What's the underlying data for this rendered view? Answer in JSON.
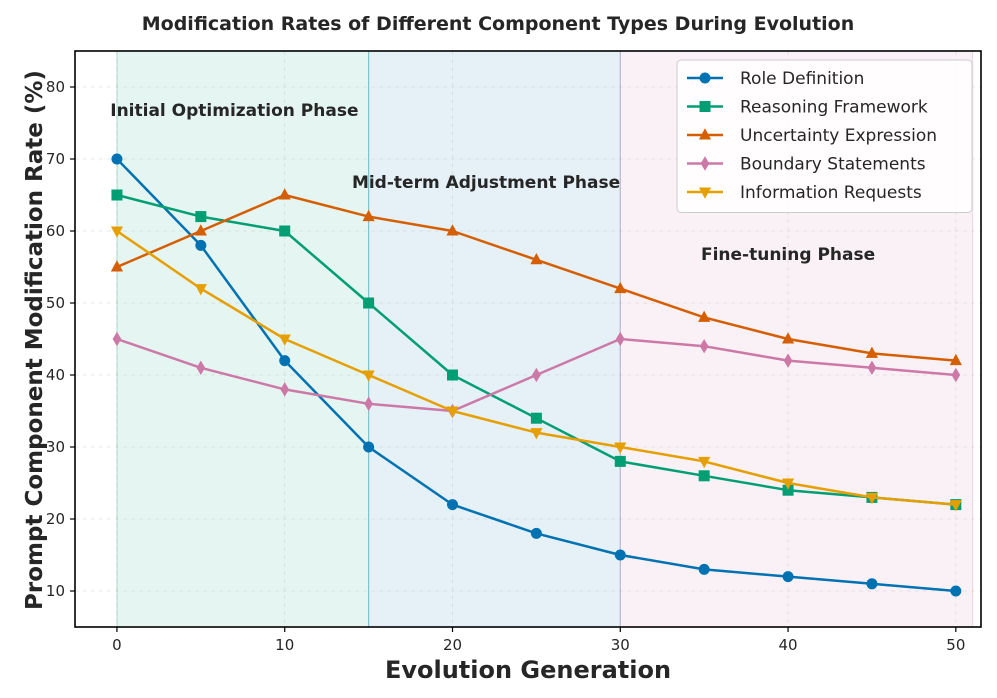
{
  "chart_data": {
    "type": "line",
    "title": "Modification Rates of Different Component Types During Evolution",
    "xlabel": "Evolution Generation",
    "ylabel": "Prompt Component Modification Rate (%)",
    "xlim": [
      -2.5,
      51.5
    ],
    "ylim": [
      5,
      85
    ],
    "xticks": [
      0,
      10,
      20,
      30,
      40,
      50
    ],
    "yticks": [
      10,
      20,
      30,
      40,
      50,
      60,
      70,
      80
    ],
    "grid": true,
    "legend_position": "top-right",
    "x": [
      0,
      5,
      10,
      15,
      20,
      25,
      30,
      35,
      40,
      45,
      50
    ],
    "series": [
      {
        "name": "Role Definition",
        "color": "#0072b2",
        "marker": "circle",
        "values": [
          70,
          58,
          42,
          30,
          22,
          18,
          15,
          13,
          12,
          11,
          10
        ]
      },
      {
        "name": "Reasoning Framework",
        "color": "#009e73",
        "marker": "square",
        "values": [
          65,
          62,
          60,
          50,
          40,
          34,
          28,
          26,
          24,
          23,
          22
        ]
      },
      {
        "name": "Uncertainty Expression",
        "color": "#d55e00",
        "marker": "triangle-up",
        "values": [
          55,
          60,
          65,
          62,
          60,
          56,
          52,
          48,
          45,
          43,
          42
        ]
      },
      {
        "name": "Boundary Statements",
        "color": "#cc79a7",
        "marker": "diamond",
        "values": [
          45,
          41,
          38,
          36,
          35,
          40,
          45,
          44,
          42,
          41,
          40
        ]
      },
      {
        "name": "Information Requests",
        "color": "#e69f00",
        "marker": "triangle-down",
        "values": [
          60,
          52,
          45,
          40,
          35,
          32,
          30,
          28,
          25,
          23,
          22
        ]
      }
    ],
    "phases": [
      {
        "label": "Initial Optimization Phase",
        "x_start": 0,
        "x_end": 15,
        "color": "#009e73",
        "label_x": 7,
        "label_y": 76
      },
      {
        "label": "Mid-term Adjustment Phase",
        "x_start": 15,
        "x_end": 30,
        "color": "#0072b2",
        "label_x": 22,
        "label_y": 66
      },
      {
        "label": "Fine-tuning Phase",
        "x_start": 30,
        "x_end": 51,
        "color": "#cc79a7",
        "label_x": 40,
        "label_y": 56
      }
    ]
  }
}
